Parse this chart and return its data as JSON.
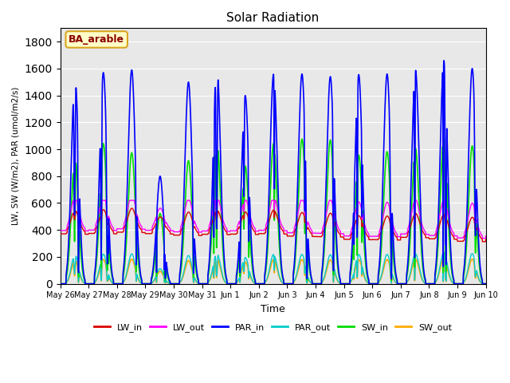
{
  "title": "Solar Radiation",
  "xlabel": "Time",
  "ylabel": "LW, SW (W/m2), PAR (umol/m2/s)",
  "ylim": [
    0,
    1900
  ],
  "yticks": [
    0,
    200,
    400,
    600,
    800,
    1000,
    1200,
    1400,
    1600,
    1800
  ],
  "annotation_text": "BA_arable",
  "colors": {
    "LW_in": "#dd0000",
    "LW_out": "#ff00ff",
    "PAR_in": "#0000ff",
    "PAR_out": "#00cccc",
    "SW_in": "#00dd00",
    "SW_out": "#ffaa00"
  },
  "linewidths": {
    "LW_in": 1.0,
    "LW_out": 1.0,
    "PAR_in": 1.2,
    "PAR_out": 1.0,
    "SW_in": 1.2,
    "SW_out": 1.2
  },
  "background_color": "#e8e8e8",
  "fig_facecolor": "#ffffff",
  "tick_labels": [
    "May 26",
    "May 27",
    "May 28",
    "May 29",
    "May 30",
    "May 31",
    "Jun 1",
    "Jun 2",
    "Jun 3",
    "Jun 4",
    "Jun 5",
    "Jun 6",
    "Jun 7",
    "Jun 8",
    "Jun 9",
    "Jun 10"
  ],
  "n_days": 15,
  "pts_per_day": 144
}
